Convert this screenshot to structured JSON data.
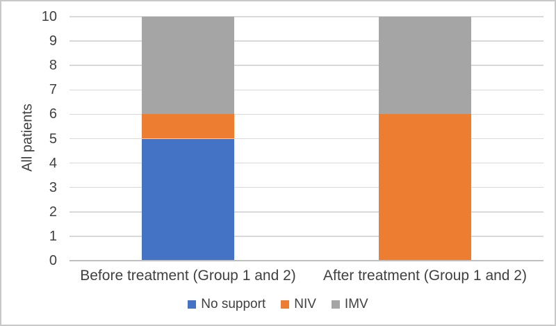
{
  "figure": {
    "background": "#ffffff",
    "border_color": "#c8c8c8"
  },
  "chart_data": {
    "type": "bar",
    "stacked": true,
    "title": "",
    "xlabel": "",
    "ylabel": "All patients",
    "categories": [
      "Before treatment (Group 1 and 2)",
      "After treatment (Group 1 and 2)"
    ],
    "series": [
      {
        "name": "No support",
        "color": "#4472C4",
        "values": [
          5,
          0
        ]
      },
      {
        "name": "NIV",
        "color": "#ED7D31",
        "values": [
          1,
          6
        ]
      },
      {
        "name": "IMV",
        "color": "#A5A5A5",
        "values": [
          4,
          4
        ]
      }
    ],
    "ylim": [
      0,
      10
    ],
    "yticks": [
      0,
      1,
      2,
      3,
      4,
      5,
      6,
      7,
      8,
      9,
      10
    ],
    "grid": true,
    "gridline_color": "#d9d9d9",
    "axis_line_color": "#bfbfbf",
    "text_color": "#404040",
    "legend_position": "bottom",
    "legend_labels": [
      "No support",
      "NIV",
      "IMV"
    ]
  }
}
